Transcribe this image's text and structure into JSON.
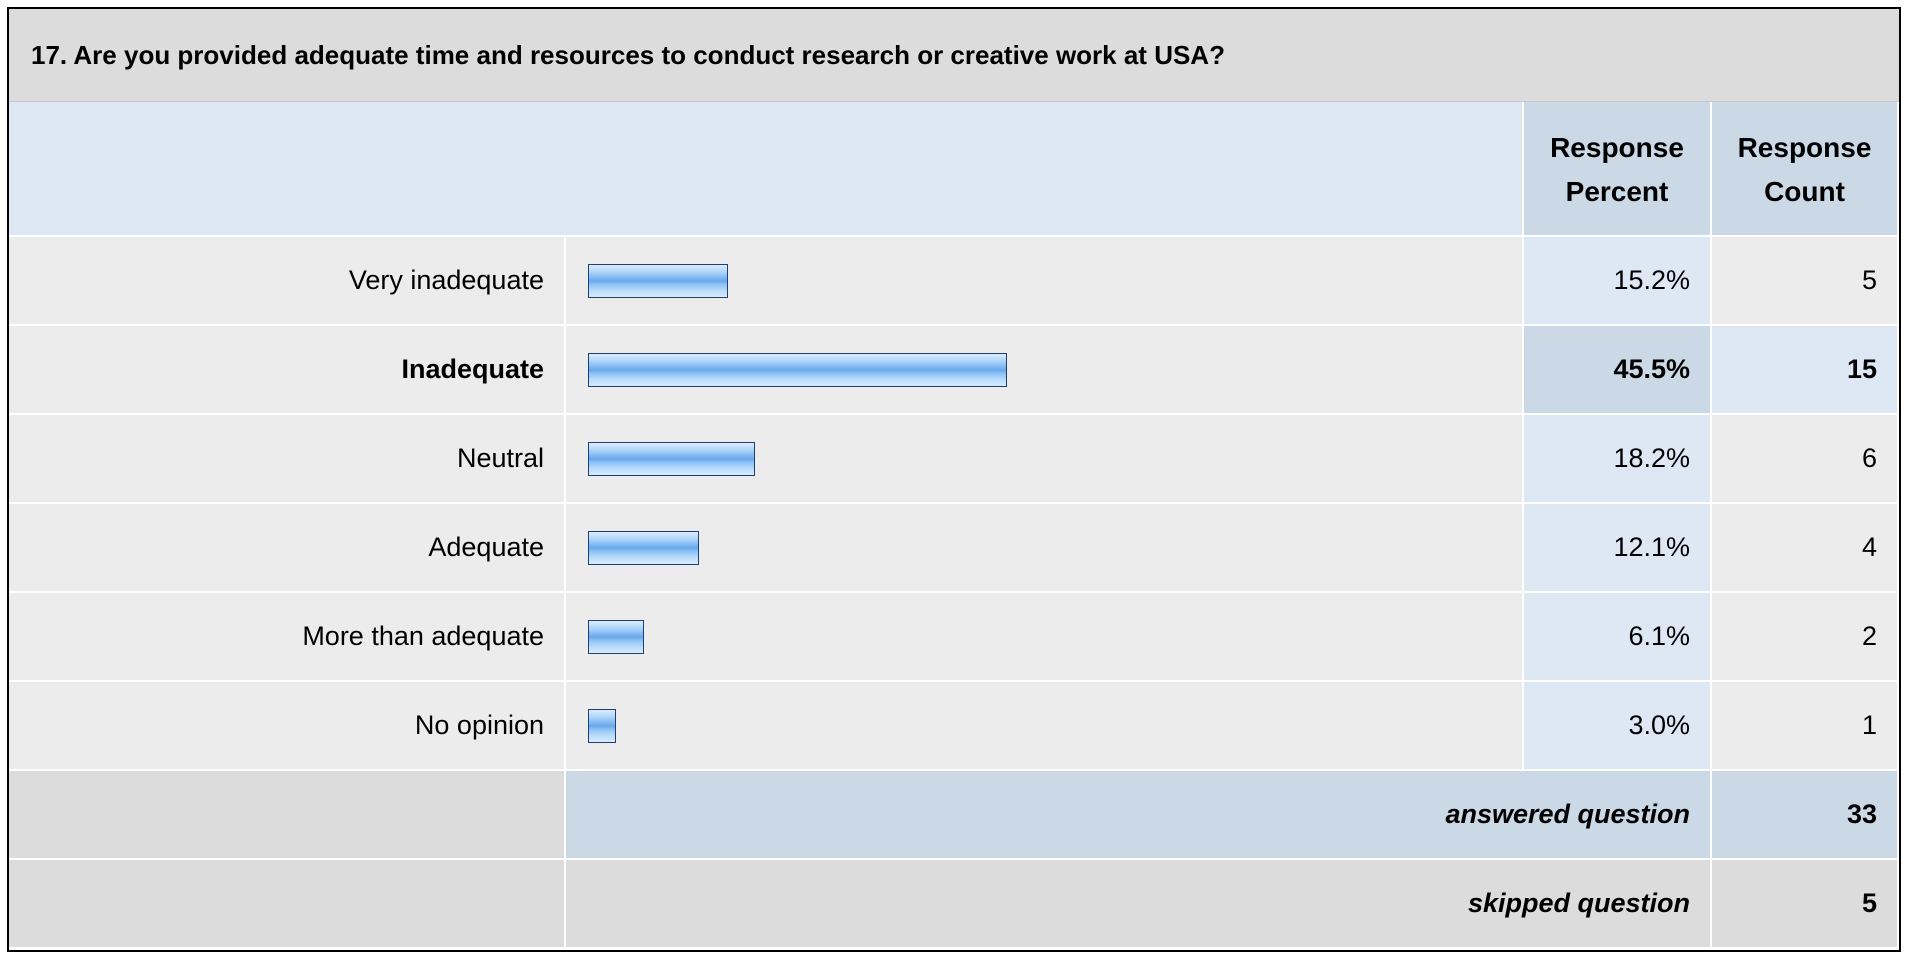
{
  "title": "17. Are you provided adequate time and resources to conduct research or creative work at USA?",
  "headers": {
    "percent_line1": "Response",
    "percent_line2": "Percent",
    "count_line1": "Response",
    "count_line2": "Count"
  },
  "chart_data": {
    "type": "bar",
    "orientation": "horizontal",
    "title": "17. Are you provided adequate time and resources to conduct research or creative work at USA?",
    "xlim": [
      0,
      100
    ],
    "categories": [
      "Very inadequate",
      "Inadequate",
      "Neutral",
      "Adequate",
      "More than adequate",
      "No opinion"
    ],
    "values": [
      15.2,
      45.5,
      18.2,
      12.1,
      6.1,
      3.0
    ],
    "percent_labels": [
      "15.2%",
      "45.5%",
      "18.2%",
      "12.1%",
      "6.1%",
      "3.0%"
    ],
    "counts": [
      "5",
      "15",
      "6",
      "4",
      "2",
      "1"
    ],
    "highlighted_index": 1
  },
  "summary": {
    "answered_label": "answered question",
    "answered_count": "33",
    "skipped_label": "skipped question",
    "skipped_count": "5"
  },
  "colors": {
    "title_bg": "#dcdcdc",
    "header_bg": "#dde8f4",
    "header_col_bg": "#cbd8e6",
    "label_bg": "#ececec",
    "percent_bg": "#dde8f4",
    "count_bg": "#ececec",
    "highlight_label_bg": "#ececec",
    "highlight_percent_bg": "#cbd8e6",
    "highlight_count_bg": "#dde8f4",
    "summary_bg": "#cbd8e6",
    "summary_left_bg": "#dcdcdc",
    "bar_border": "#1f3f70"
  }
}
